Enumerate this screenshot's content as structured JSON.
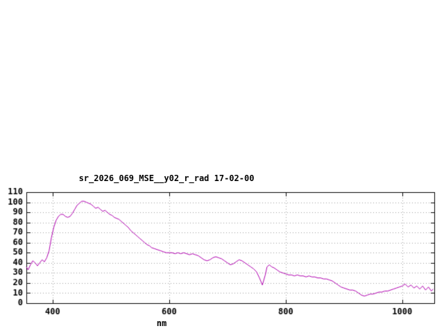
{
  "colors": {
    "background": "#ffffff",
    "axis": "#000000",
    "text": "#000000",
    "grid": "#9a9a9a"
  },
  "chart_data": {
    "type": "line",
    "title": "sr_2026_069_MSE__y02_r_rad 17-02-00",
    "xlabel": "nm",
    "ylabel": "",
    "xlim": [
      355,
      1055
    ],
    "ylim": [
      0,
      110
    ],
    "x_ticks": [
      400,
      600,
      800,
      1000
    ],
    "y_ticks": [
      0,
      10,
      20,
      30,
      40,
      50,
      60,
      70,
      80,
      90,
      100,
      110
    ],
    "grid": true,
    "legend": "none",
    "line_color": "#b000b0",
    "series": [
      {
        "name": "sr_2026_069_MSE__y02_r_rad",
        "points": [
          [
            355,
            36
          ],
          [
            358,
            33
          ],
          [
            362,
            38
          ],
          [
            366,
            42
          ],
          [
            370,
            40
          ],
          [
            374,
            37
          ],
          [
            378,
            40
          ],
          [
            382,
            43
          ],
          [
            386,
            41
          ],
          [
            390,
            45
          ],
          [
            394,
            52
          ],
          [
            398,
            65
          ],
          [
            402,
            75
          ],
          [
            406,
            82
          ],
          [
            410,
            86
          ],
          [
            414,
            88
          ],
          [
            418,
            88
          ],
          [
            422,
            86
          ],
          [
            426,
            85
          ],
          [
            430,
            86
          ],
          [
            434,
            89
          ],
          [
            438,
            93
          ],
          [
            442,
            97
          ],
          [
            446,
            99
          ],
          [
            450,
            101
          ],
          [
            454,
            101
          ],
          [
            458,
            100
          ],
          [
            462,
            99
          ],
          [
            466,
            98
          ],
          [
            470,
            96
          ],
          [
            474,
            94
          ],
          [
            478,
            95
          ],
          [
            482,
            93
          ],
          [
            486,
            91
          ],
          [
            490,
            92
          ],
          [
            494,
            90
          ],
          [
            498,
            88
          ],
          [
            502,
            87
          ],
          [
            506,
            85
          ],
          [
            510,
            84
          ],
          [
            514,
            83
          ],
          [
            518,
            81
          ],
          [
            522,
            79
          ],
          [
            526,
            77
          ],
          [
            530,
            75
          ],
          [
            534,
            72
          ],
          [
            538,
            70
          ],
          [
            542,
            68
          ],
          [
            546,
            66
          ],
          [
            550,
            64
          ],
          [
            554,
            62
          ],
          [
            558,
            60
          ],
          [
            562,
            58
          ],
          [
            566,
            57
          ],
          [
            570,
            55
          ],
          [
            575,
            54
          ],
          [
            580,
            53
          ],
          [
            585,
            52
          ],
          [
            590,
            51
          ],
          [
            595,
            50
          ],
          [
            600,
            50
          ],
          [
            605,
            50
          ],
          [
            610,
            49
          ],
          [
            615,
            50
          ],
          [
            620,
            49
          ],
          [
            625,
            50
          ],
          [
            630,
            49
          ],
          [
            635,
            48
          ],
          [
            640,
            49
          ],
          [
            645,
            48
          ],
          [
            650,
            47
          ],
          [
            655,
            45
          ],
          [
            660,
            43
          ],
          [
            665,
            42
          ],
          [
            670,
            43
          ],
          [
            675,
            45
          ],
          [
            680,
            46
          ],
          [
            685,
            45
          ],
          [
            690,
            44
          ],
          [
            695,
            42
          ],
          [
            700,
            40
          ],
          [
            705,
            38
          ],
          [
            710,
            39
          ],
          [
            715,
            41
          ],
          [
            720,
            43
          ],
          [
            725,
            42
          ],
          [
            730,
            40
          ],
          [
            735,
            38
          ],
          [
            740,
            36
          ],
          [
            745,
            34
          ],
          [
            750,
            31
          ],
          [
            755,
            25
          ],
          [
            760,
            18
          ],
          [
            765,
            28
          ],
          [
            768,
            36
          ],
          [
            772,
            38
          ],
          [
            776,
            36
          ],
          [
            780,
            35
          ],
          [
            785,
            33
          ],
          [
            790,
            31
          ],
          [
            795,
            30
          ],
          [
            800,
            29
          ],
          [
            805,
            28
          ],
          [
            810,
            28
          ],
          [
            815,
            27
          ],
          [
            820,
            28
          ],
          [
            825,
            27
          ],
          [
            830,
            27
          ],
          [
            835,
            26
          ],
          [
            840,
            27
          ],
          [
            845,
            26
          ],
          [
            850,
            26
          ],
          [
            855,
            25
          ],
          [
            860,
            25
          ],
          [
            865,
            24
          ],
          [
            870,
            24
          ],
          [
            875,
            23
          ],
          [
            880,
            22
          ],
          [
            885,
            20
          ],
          [
            890,
            18
          ],
          [
            895,
            16
          ],
          [
            900,
            15
          ],
          [
            905,
            14
          ],
          [
            910,
            13
          ],
          [
            915,
            13
          ],
          [
            920,
            12
          ],
          [
            925,
            10
          ],
          [
            930,
            8
          ],
          [
            935,
            7
          ],
          [
            940,
            8
          ],
          [
            945,
            9
          ],
          [
            950,
            9
          ],
          [
            955,
            10
          ],
          [
            960,
            11
          ],
          [
            965,
            11
          ],
          [
            970,
            12
          ],
          [
            975,
            12
          ],
          [
            980,
            13
          ],
          [
            985,
            14
          ],
          [
            990,
            15
          ],
          [
            995,
            16
          ],
          [
            1000,
            17
          ],
          [
            1005,
            19
          ],
          [
            1010,
            16
          ],
          [
            1015,
            18
          ],
          [
            1020,
            15
          ],
          [
            1025,
            17
          ],
          [
            1030,
            14
          ],
          [
            1035,
            17
          ],
          [
            1040,
            13
          ],
          [
            1045,
            16
          ],
          [
            1050,
            12
          ],
          [
            1053,
            14
          ]
        ]
      }
    ]
  }
}
